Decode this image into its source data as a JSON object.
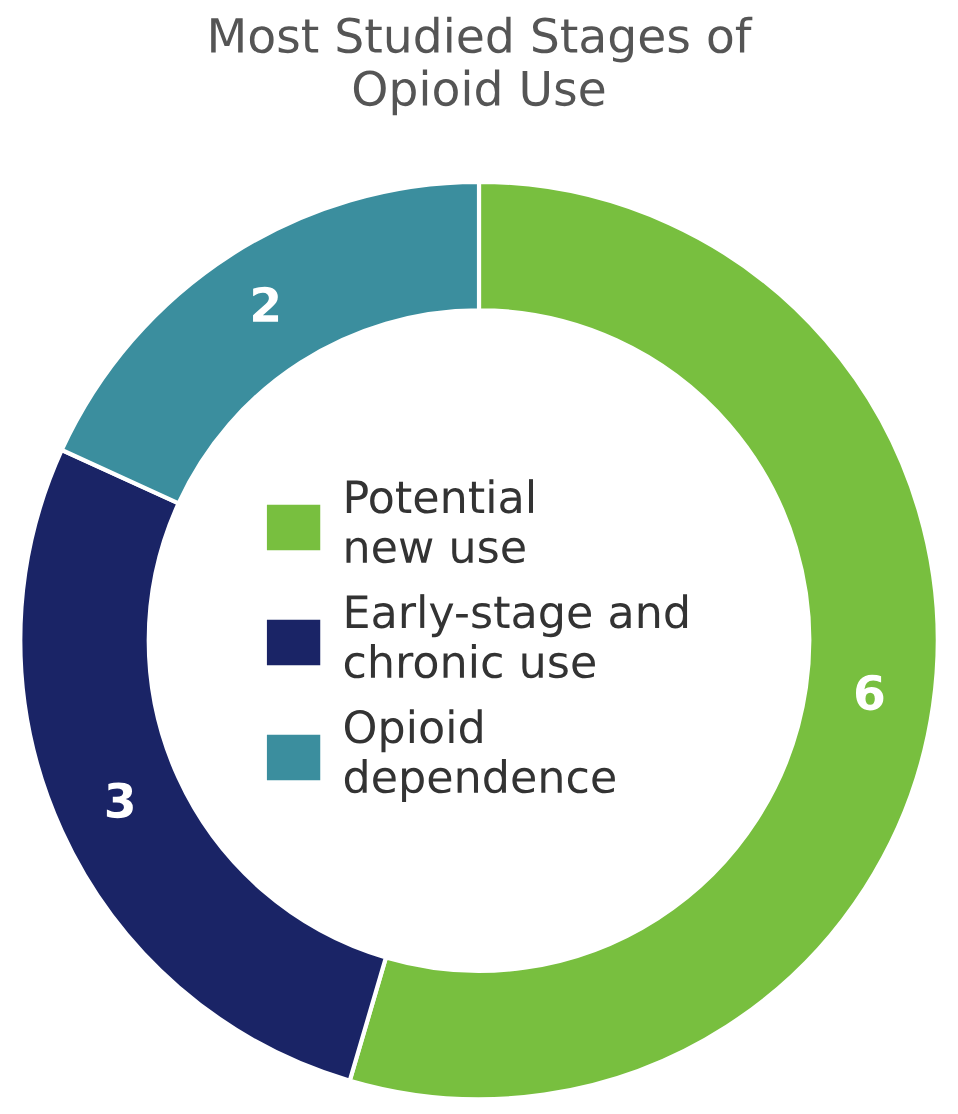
{
  "chart_data": {
    "type": "donut",
    "title": "Most Studied Stages of\nOpioid Use",
    "categories": [
      "Potential\nnew use",
      "Early-stage and\nchronic use",
      "Opioid\ndependence"
    ],
    "values": [
      6,
      3,
      2
    ],
    "colors": [
      "#78bf3f",
      "#1a2466",
      "#3b8e9e"
    ],
    "data_labels": true,
    "legend": "center"
  }
}
